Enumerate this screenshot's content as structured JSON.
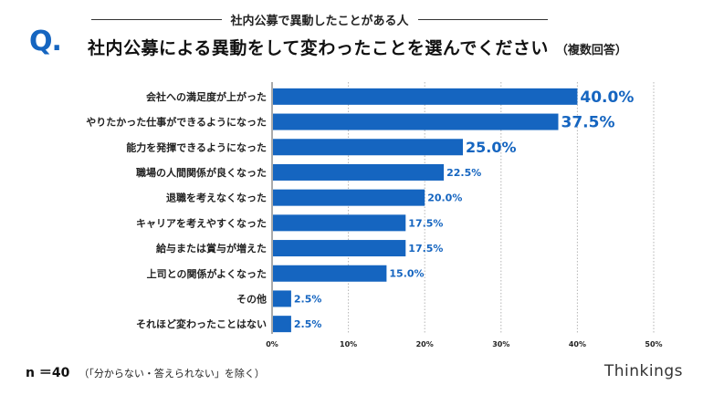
{
  "header": {
    "q_mark": "Q.",
    "subtitle": "社内公募で異動したことがある人",
    "title": "社内公募による異動をして変わったことを選んでください",
    "title_note": "（複数回答）"
  },
  "footer": {
    "sample": "n ＝40",
    "note": "（「分からない・答えられない」を除く）",
    "logo": "Thinkings"
  },
  "colors": {
    "bar": "#1565c0",
    "value_text": "#1565c0"
  },
  "chart_data": {
    "type": "bar",
    "orientation": "horizontal",
    "title": "社内公募による異動をして変わったことを選んでください",
    "categories": [
      "会社への満足度が上がった",
      "やりたかった仕事ができるようになった",
      "能力を発揮できるようになった",
      "職場の人間関係が良くなった",
      "退職を考えなくなった",
      "キャリアを考えやすくなった",
      "給与または賞与が増えた",
      "上司との関係がよくなった",
      "その他",
      "それほど変わったことはない"
    ],
    "values": [
      40.0,
      37.5,
      25.0,
      22.5,
      20.0,
      17.5,
      17.5,
      15.0,
      2.5,
      2.5
    ],
    "value_labels": [
      "40.0%",
      "37.5%",
      "25.0%",
      "22.5%",
      "20.0%",
      "17.5%",
      "17.5%",
      "15.0%",
      "2.5%",
      "2.5%"
    ],
    "xlim": [
      0,
      50
    ],
    "xticks": [
      0,
      10,
      20,
      30,
      40,
      50
    ],
    "xtick_labels": [
      "0%",
      "10%",
      "20%",
      "30%",
      "40%",
      "50%"
    ],
    "grid": "vertical-dotted",
    "legend": "none"
  }
}
